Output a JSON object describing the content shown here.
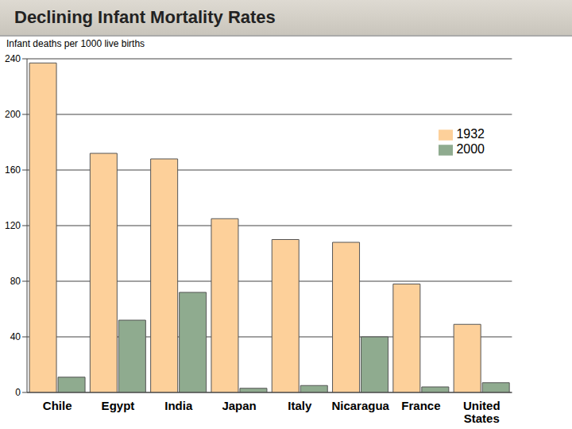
{
  "chart_data": {
    "type": "bar",
    "title": "Declining Infant Mortality Rates",
    "y_label": "Infant deaths per 1000 live births",
    "categories": [
      "Chile",
      "Egypt",
      "India",
      "Japan",
      "Italy",
      "Nicaragua",
      "France",
      "United States"
    ],
    "series": [
      {
        "name": "1932",
        "color": "#fdd09a",
        "values": [
          237,
          172,
          168,
          125,
          110,
          108,
          78,
          49
        ]
      },
      {
        "name": "2000",
        "color": "#8fab8f",
        "values": [
          11,
          52,
          72,
          3,
          5,
          40,
          4,
          7
        ]
      }
    ],
    "ylim": [
      0,
      240
    ],
    "yticks": [
      0,
      40,
      80,
      120,
      160,
      200,
      240
    ],
    "grid": true,
    "legend": "upper right"
  }
}
